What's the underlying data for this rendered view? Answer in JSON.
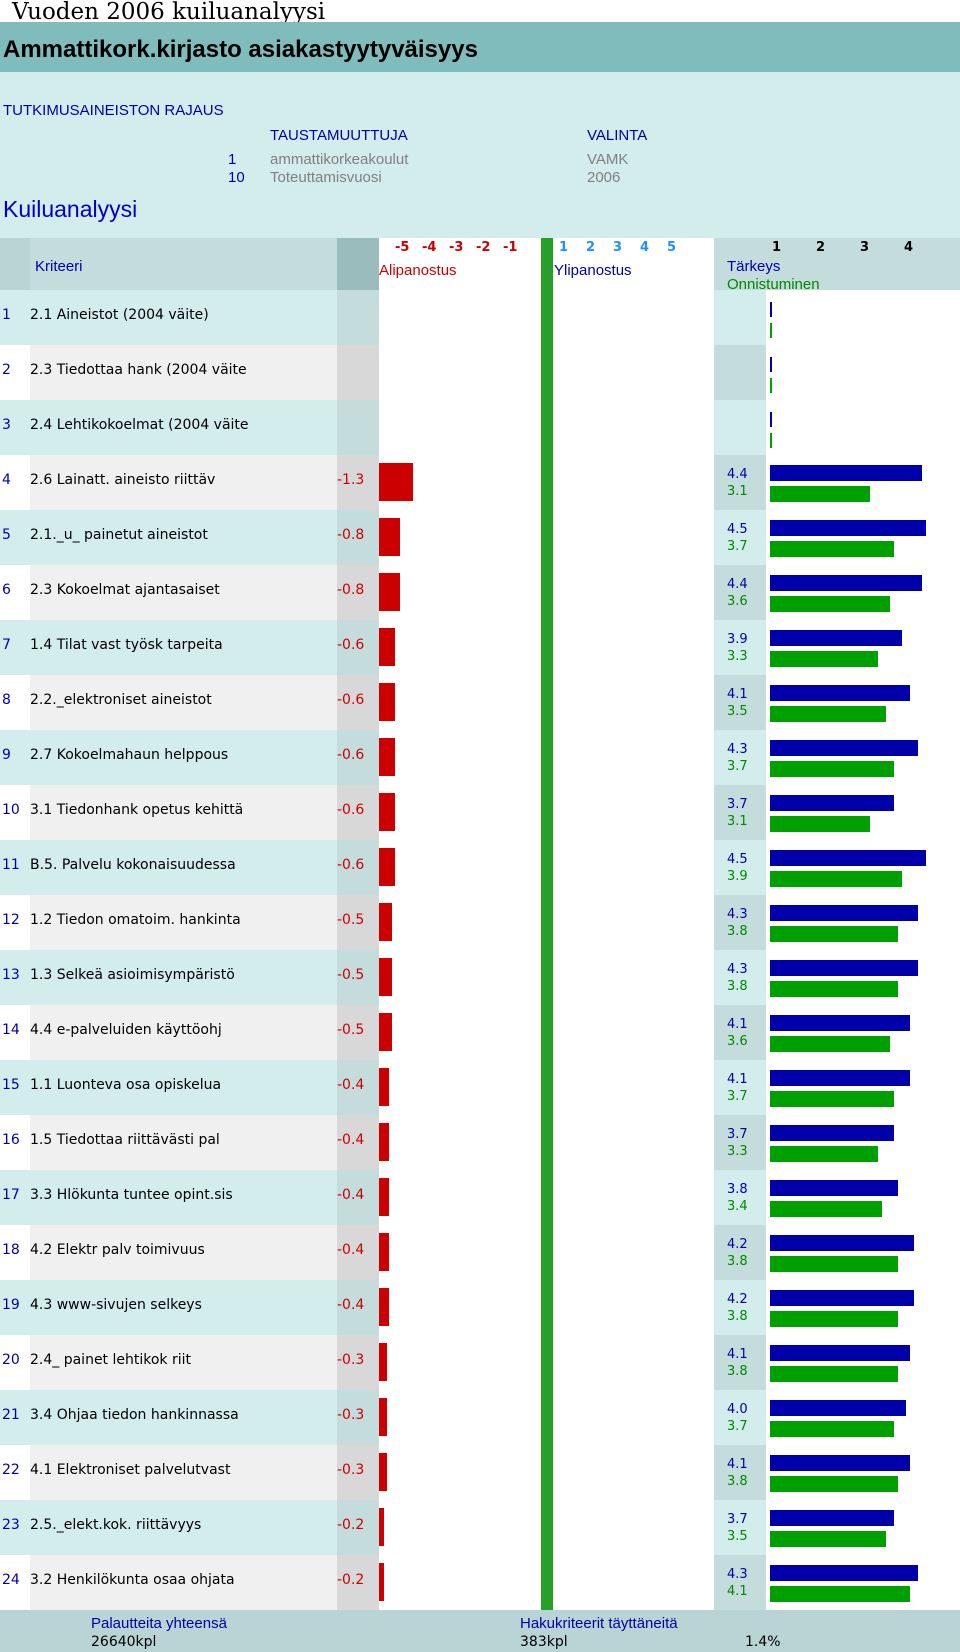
{
  "page": {
    "title": "Vuoden 2006 kuiluanalyysi",
    "heading": "Ammattikork.kirjasto asiakastyytyväisyys"
  },
  "filters": {
    "section_label": "TUTKIMUSAINEISTON RAJAUS",
    "col_background": "TAUSTAMUUTTUJA",
    "col_selection": "VALINTA",
    "rows": [
      {
        "code": "1",
        "variable": "ammattikorkeakoulut",
        "value": "VAMK"
      },
      {
        "code": "10",
        "variable": "Toteuttamisvuosi",
        "value": "2006"
      }
    ]
  },
  "analysis_title": "Kuiluanalyysi",
  "header": {
    "criteria": "Kriteeri",
    "under": "Alipanostus",
    "over": "Ylipanostus",
    "importance": "Tärkeys",
    "success": "Onnistuminen",
    "gap_scale": [
      "-5",
      "-4",
      "-3",
      "-2",
      "-1",
      "1",
      "2",
      "3",
      "4",
      "5"
    ],
    "bar_scale": [
      "1",
      "2",
      "3",
      "4"
    ]
  },
  "colors": {
    "gap": "#cc0000",
    "importance": "#0000aa",
    "success": "#00a000",
    "center_line": "#28a028"
  },
  "rows": [
    {
      "num": "1",
      "label": "2.1 Aineistot (2004 väite)",
      "gap": "",
      "importance": "",
      "success": ""
    },
    {
      "num": "2",
      "label": "2.3 Tiedottaa hank (2004 väite",
      "gap": "",
      "importance": "",
      "success": ""
    },
    {
      "num": "3",
      "label": "2.4 Lehtikokoelmat (2004 väite",
      "gap": "",
      "importance": "",
      "success": ""
    },
    {
      "num": "4",
      "label": "2.6 Lainatt. aineisto riittäv",
      "gap": "-1.3",
      "importance": "4.4",
      "success": "3.1"
    },
    {
      "num": "5",
      "label": "2.1._u_ painetut aineistot",
      "gap": "-0.8",
      "importance": "4.5",
      "success": "3.7"
    },
    {
      "num": "6",
      "label": "2.3 Kokoelmat ajantasaiset",
      "gap": "-0.8",
      "importance": "4.4",
      "success": "3.6"
    },
    {
      "num": "7",
      "label": "1.4 Tilat vast työsk tarpeita",
      "gap": "-0.6",
      "importance": "3.9",
      "success": "3.3"
    },
    {
      "num": "8",
      "label": "2.2._elektroniset aineistot",
      "gap": "-0.6",
      "importance": "4.1",
      "success": "3.5"
    },
    {
      "num": "9",
      "label": "2.7 Kokoelmahaun helppous",
      "gap": "-0.6",
      "importance": "4.3",
      "success": "3.7"
    },
    {
      "num": "10",
      "label": "3.1 Tiedonhank opetus kehittä",
      "gap": "-0.6",
      "importance": "3.7",
      "success": "3.1"
    },
    {
      "num": "11",
      "label": "B.5. Palvelu kokonaisuudessa",
      "gap": "-0.6",
      "importance": "4.5",
      "success": "3.9"
    },
    {
      "num": "12",
      "label": "1.2 Tiedon omatoim. hankinta",
      "gap": "-0.5",
      "importance": "4.3",
      "success": "3.8"
    },
    {
      "num": "13",
      "label": "1.3 Selkeä asioimisympäristö",
      "gap": "-0.5",
      "importance": "4.3",
      "success": "3.8"
    },
    {
      "num": "14",
      "label": "4.4 e-palveluiden käyttöohj",
      "gap": "-0.5",
      "importance": "4.1",
      "success": "3.6"
    },
    {
      "num": "15",
      "label": "1.1 Luonteva osa opiskelua",
      "gap": "-0.4",
      "importance": "4.1",
      "success": "3.7"
    },
    {
      "num": "16",
      "label": "1.5 Tiedottaa riittävästi pal",
      "gap": "-0.4",
      "importance": "3.7",
      "success": "3.3"
    },
    {
      "num": "17",
      "label": "3.3 Hlökunta tuntee opint.sis",
      "gap": "-0.4",
      "importance": "3.8",
      "success": "3.4"
    },
    {
      "num": "18",
      "label": "4.2 Elektr palv toimivuus",
      "gap": "-0.4",
      "importance": "4.2",
      "success": "3.8"
    },
    {
      "num": "19",
      "label": "4.3 www-sivujen selkeys",
      "gap": "-0.4",
      "importance": "4.2",
      "success": "3.8"
    },
    {
      "num": "20",
      "label": "2.4_ painet lehtikok riit",
      "gap": "-0.3",
      "importance": "4.1",
      "success": "3.8"
    },
    {
      "num": "21",
      "label": "3.4 Ohjaa tiedon hankinnassa",
      "gap": "-0.3",
      "importance": "4.0",
      "success": "3.7"
    },
    {
      "num": "22",
      "label": "4.1 Elektroniset palvelutvast",
      "gap": "-0.3",
      "importance": "4.1",
      "success": "3.8"
    },
    {
      "num": "23",
      "label": "2.5._elekt.kok. riittävyys",
      "gap": "-0.2",
      "importance": "3.7",
      "success": "3.5"
    },
    {
      "num": "24",
      "label": "3.2 Henkilökunta osaa ohjata",
      "gap": "-0.2",
      "importance": "4.3",
      "success": "4.1"
    }
  ],
  "footer": {
    "responses_label": "Palautteita yhteensä",
    "responses_value": "26640kpl",
    "criteria_label": "Hakukriteerit täyttäneitä",
    "criteria_value": "383kpl",
    "criteria_percent": "1.4%"
  }
}
